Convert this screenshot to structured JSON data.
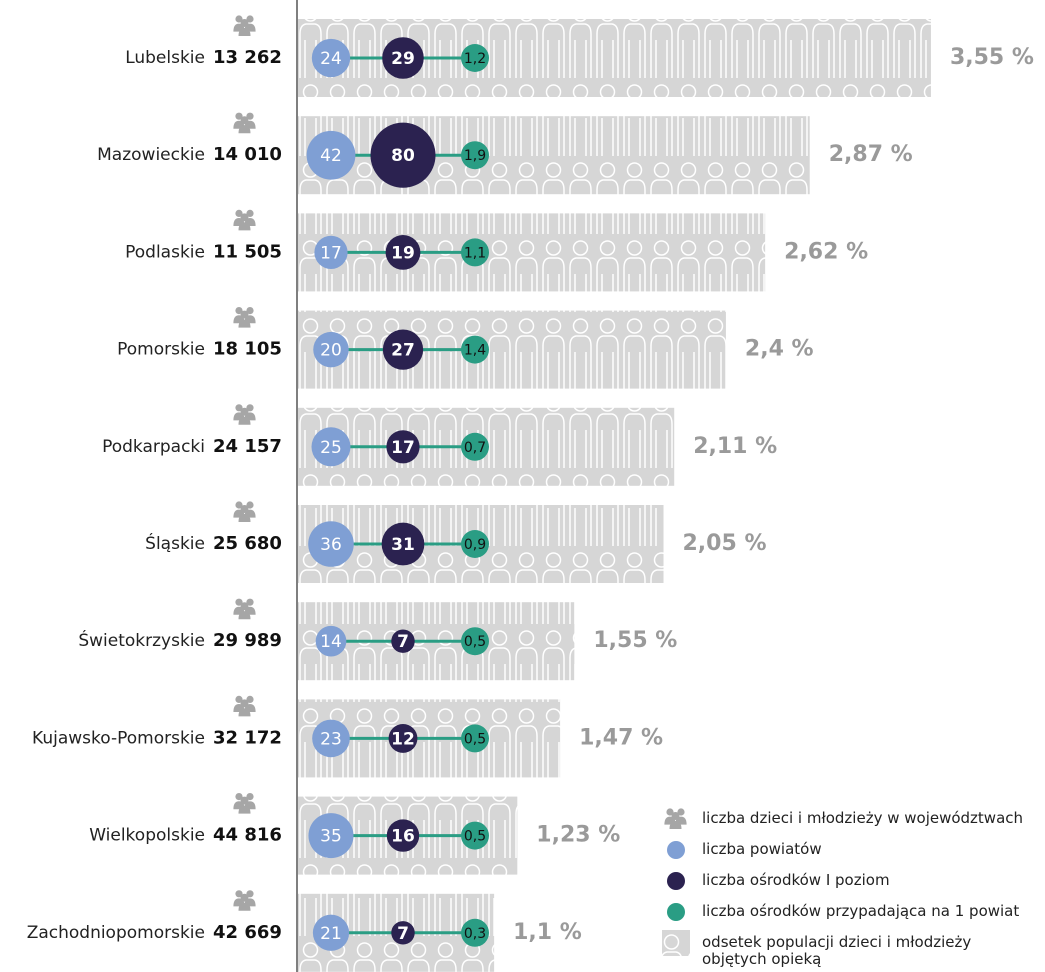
{
  "chart_data": {
    "type": "bar",
    "categories": [
      "Lubelskie",
      "Mazowieckie",
      "Podlaskie",
      "Pomorskie",
      "Podkarpacki",
      "Śląskie",
      "Świetokrzyskie",
      "Kujawsko-Pomorskie",
      "Wielkopolskie",
      "Zachodniopomorskie"
    ],
    "series": [
      {
        "name": "odsetek populacji dzieci i młodzieży objętych opieką",
        "color": "#d6d6d6",
        "values": [
          3.55,
          2.87,
          2.62,
          2.4,
          2.11,
          2.05,
          1.55,
          1.47,
          1.23,
          1.1
        ],
        "value_labels": [
          "3,55 %",
          "2,87 %",
          "2,62 %",
          "2,4 %",
          "2,11 %",
          "2,05 %",
          "1,55 %",
          "1,47 %",
          "1,23 %",
          "1,1 %"
        ]
      },
      {
        "name": "liczba dzieci i młodzieży w województwach",
        "color": "#a6a6a6",
        "values": [
          13262,
          14010,
          11505,
          18105,
          24157,
          25680,
          29989,
          32172,
          44816,
          42669
        ],
        "value_labels": [
          "13 262",
          "14 010",
          "11 505",
          "18 105",
          "24 157",
          "25 680",
          "29 989",
          "32 172",
          "44 816",
          "42 669"
        ]
      },
      {
        "name": "liczba powiatów",
        "color": "#7f9fd4",
        "values": [
          24,
          42,
          17,
          20,
          25,
          36,
          14,
          23,
          35,
          21
        ]
      },
      {
        "name": "liczba ośrodków I poziom",
        "color": "#2b2250",
        "values": [
          29,
          80,
          19,
          27,
          17,
          31,
          7,
          12,
          16,
          7
        ]
      },
      {
        "name": "liczba ośrodków przypadająca na 1 powiat",
        "color": "#2a9d84",
        "values": [
          1.2,
          1.9,
          1.1,
          1.4,
          0.7,
          0.9,
          0.5,
          0.5,
          0.5,
          0.3
        ],
        "value_labels": [
          "1,2",
          "1,9",
          "1,1",
          "1,4",
          "0,7",
          "0,9",
          "0,5",
          "0,5",
          "0,5",
          "0,3"
        ]
      }
    ]
  }
}
